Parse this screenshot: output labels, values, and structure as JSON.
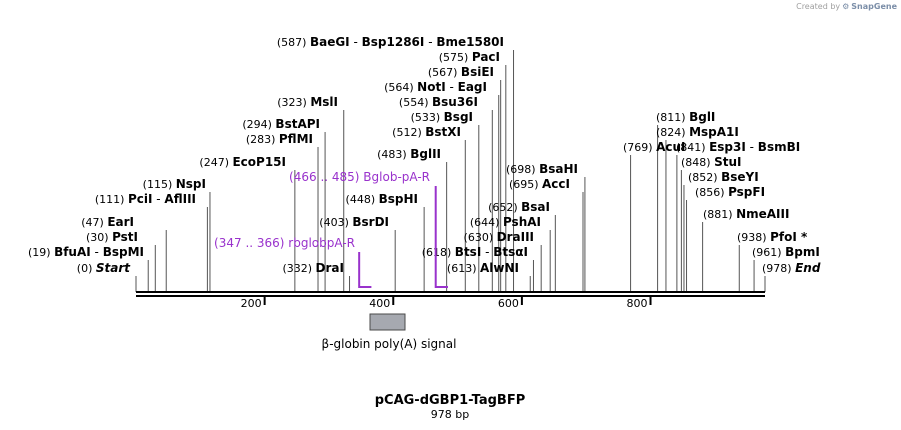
{
  "credit": {
    "prefix": "Created by",
    "brand": "SnapGene"
  },
  "plasmid": {
    "name": "pCAG-dGBP1-TagBFP",
    "length_label": "978 bp",
    "length": 978
  },
  "axis_ticks": [
    "200",
    "400",
    "600",
    "800"
  ],
  "feature": {
    "label": "β-globin poly(A) signal",
    "color": "#a6a9b0"
  },
  "primer_color": "#9932cc",
  "site_rows": [
    {
      "pos": "(587)",
      "names": [
        "BaeGI",
        "Bsp1286I",
        "Bme1580I"
      ],
      "bp": 587
    },
    {
      "pos": "(575)",
      "names": [
        "PacI"
      ],
      "bp": 575
    },
    {
      "pos": "(567)",
      "names": [
        "BsiEI"
      ],
      "bp": 567
    },
    {
      "pos": "(564)",
      "names": [
        "NotI",
        "EagI"
      ],
      "bp": 564
    },
    {
      "pos": "(554)",
      "names": [
        "Bsu36I"
      ],
      "bp": 554
    },
    {
      "pos": "(533)",
      "names": [
        "BsgI"
      ],
      "bp": 533
    },
    {
      "pos": "(512)",
      "names": [
        "BstXI"
      ],
      "bp": 512
    },
    {
      "pos": "(483)",
      "names": [
        "BglII"
      ],
      "bp": 483
    },
    {
      "pos": "(448)",
      "names": [
        "BspHI"
      ],
      "bp": 448
    },
    {
      "pos": "(403)",
      "names": [
        "BsrDI"
      ],
      "bp": 403
    },
    {
      "pos": "(332)",
      "names": [
        "DraI"
      ],
      "bp": 332
    },
    {
      "pos": "(323)",
      "names": [
        "MslI"
      ],
      "bp": 323
    },
    {
      "pos": "(294)",
      "names": [
        "BstAPI"
      ],
      "bp": 294
    },
    {
      "pos": "(283)",
      "names": [
        "PflMI"
      ],
      "bp": 283
    },
    {
      "pos": "(247)",
      "names": [
        "EcoP15I"
      ],
      "bp": 247
    },
    {
      "pos": "(115)",
      "names": [
        "NspI"
      ],
      "bp": 115
    },
    {
      "pos": "(111)",
      "names": [
        "PciI",
        "AflIII"
      ],
      "bp": 111
    },
    {
      "pos": "(47)",
      "names": [
        "EarI"
      ],
      "bp": 47
    },
    {
      "pos": "(30)",
      "names": [
        "PstI"
      ],
      "bp": 30
    },
    {
      "pos": "(19)",
      "names": [
        "BfuAI",
        "BspMI"
      ],
      "bp": 19
    },
    {
      "pos": "(0)",
      "names": [
        "Start"
      ],
      "bp": 0,
      "italic": true
    },
    {
      "pos": "(698)",
      "names": [
        "BsaHI"
      ],
      "bp": 698
    },
    {
      "pos": "(695)",
      "names": [
        "AccI"
      ],
      "bp": 695
    },
    {
      "pos": "(652)",
      "names": [
        "BsaI"
      ],
      "bp": 652
    },
    {
      "pos": "(644)",
      "names": [
        "PshAI"
      ],
      "bp": 644
    },
    {
      "pos": "(630)",
      "names": [
        "DraIII"
      ],
      "bp": 630
    },
    {
      "pos": "(618)",
      "names": [
        "BtsI",
        "BtsαI"
      ],
      "bp": 618
    },
    {
      "pos": "(613)",
      "names": [
        "AlwNI"
      ],
      "bp": 613
    },
    {
      "pos": "(769)",
      "names": [
        "AcuI"
      ],
      "bp": 769
    },
    {
      "pos": "(811)",
      "names": [
        "BglI"
      ],
      "bp": 811
    },
    {
      "pos": "(824)",
      "names": [
        "MspA1I"
      ],
      "bp": 824
    },
    {
      "pos": "(841)",
      "names": [
        "Esp3I",
        "BsmBI"
      ],
      "bp": 841
    },
    {
      "pos": "(848)",
      "names": [
        "StuI"
      ],
      "bp": 848
    },
    {
      "pos": "(852)",
      "names": [
        "BseYI"
      ],
      "bp": 852
    },
    {
      "pos": "(856)",
      "names": [
        "PspFI"
      ],
      "bp": 856
    },
    {
      "pos": "(881)",
      "names": [
        "NmeAIII"
      ],
      "bp": 881
    },
    {
      "pos": "(938)",
      "names": [
        "PfoI *"
      ],
      "bp": 938
    },
    {
      "pos": "(961)",
      "names": [
        "BpmI"
      ],
      "bp": 961
    },
    {
      "pos": "(978)",
      "names": [
        "End"
      ],
      "bp": 978,
      "italic": true
    }
  ],
  "primers": [
    {
      "range": "(466 .. 485)",
      "name": "Bglob-pA-R",
      "start": 466,
      "end": 485
    },
    {
      "range": "(347 .. 366)",
      "name": "rbglobpA-R",
      "start": 347,
      "end": 366
    }
  ]
}
